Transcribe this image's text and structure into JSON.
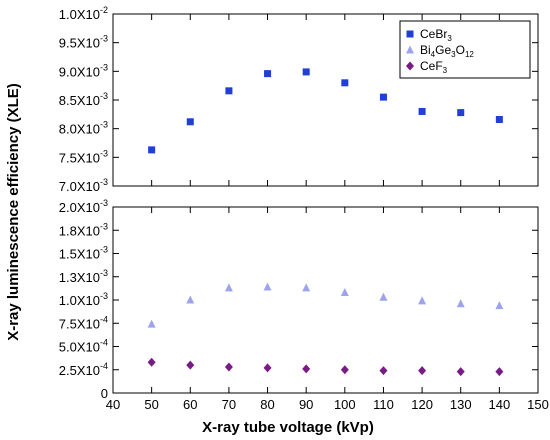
{
  "chart_data": {
    "type": "scatter",
    "xlabel": "X-ray tube voltage (kVp)",
    "ylabel": "X-ray luminescence efficiency (XLE)",
    "x_ticks": [
      40,
      50,
      60,
      70,
      80,
      90,
      100,
      110,
      120,
      130,
      140,
      150
    ],
    "xlim": [
      40,
      150
    ],
    "broken_y_axis": true,
    "upper_panel": {
      "ylim": [
        0.007,
        0.01
      ],
      "tick_values": [
        0.007,
        0.0075,
        0.008,
        0.0085,
        0.009,
        0.0095,
        0.01
      ],
      "tick_labels": [
        {
          "mant": "7.0X10",
          "exp": "-3"
        },
        {
          "mant": "7.5X10",
          "exp": "-3"
        },
        {
          "mant": "8.0X10",
          "exp": "-3"
        },
        {
          "mant": "8.5X10",
          "exp": "-3"
        },
        {
          "mant": "9.0X10",
          "exp": "-3"
        },
        {
          "mant": "9.5X10",
          "exp": "-3"
        },
        {
          "mant": "1.0X10",
          "exp": "-2"
        }
      ]
    },
    "lower_panel": {
      "ylim": [
        0,
        0.002
      ],
      "tick_values": [
        0,
        0.00025,
        0.0005,
        0.00075,
        0.001,
        0.00125,
        0.0015,
        0.00175,
        0.002
      ],
      "tick_labels": [
        {
          "mant": "0",
          "exp": ""
        },
        {
          "mant": "2.5X10",
          "exp": "-4"
        },
        {
          "mant": "5.0X10",
          "exp": "-4"
        },
        {
          "mant": "7.5X10",
          "exp": "-4"
        },
        {
          "mant": "1.0X10",
          "exp": "-3"
        },
        {
          "mant": "1.3X10",
          "exp": "-3"
        },
        {
          "mant": "1.5X10",
          "exp": "-3"
        },
        {
          "mant": "1.8X10",
          "exp": "-3"
        },
        {
          "mant": "2.0X10",
          "exp": "-3"
        }
      ]
    },
    "x": [
      50,
      60,
      70,
      80,
      90,
      100,
      110,
      120,
      130,
      140
    ],
    "series": [
      {
        "name": "CeBr3",
        "label_parts": [
          {
            "t": "CeBr",
            "sub": false
          },
          {
            "t": "3",
            "sub": true
          }
        ],
        "panel": "upper",
        "marker": "square",
        "color": "#1f3fd6",
        "values": [
          0.00763,
          0.00812,
          0.00866,
          0.00896,
          0.00899,
          0.0088,
          0.00855,
          0.0083,
          0.00828,
          0.00816
        ]
      },
      {
        "name": "Bi4Ge3O12",
        "label_parts": [
          {
            "t": "Bi",
            "sub": false
          },
          {
            "t": "4",
            "sub": true
          },
          {
            "t": "Ge",
            "sub": false
          },
          {
            "t": "3",
            "sub": true
          },
          {
            "t": "O",
            "sub": false
          },
          {
            "t": "12",
            "sub": true
          }
        ],
        "panel": "lower",
        "marker": "triangle",
        "color": "#9fa3ee",
        "values": [
          0.00074,
          0.001,
          0.00113,
          0.00114,
          0.00113,
          0.00108,
          0.00103,
          0.00099,
          0.00096,
          0.00094
        ]
      },
      {
        "name": "CeF3",
        "label_parts": [
          {
            "t": "CeF",
            "sub": false
          },
          {
            "t": "3",
            "sub": true
          }
        ],
        "panel": "lower",
        "marker": "diamond",
        "color": "#7a1a86",
        "values": [
          0.00033,
          0.0003,
          0.00028,
          0.00027,
          0.00026,
          0.00025,
          0.00024,
          0.00024,
          0.00023,
          0.00023
        ]
      }
    ],
    "grid": false,
    "legend_position": "top-right"
  }
}
